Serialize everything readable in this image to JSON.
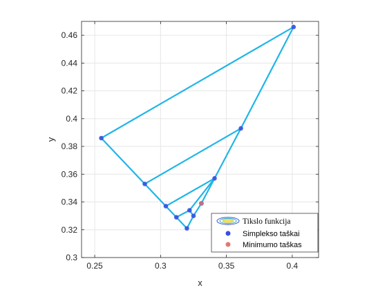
{
  "chart_data": {
    "type": "line",
    "xlabel": "x",
    "ylabel": "y",
    "xlim": [
      0.24,
      0.42
    ],
    "ylim": [
      0.3,
      0.47
    ],
    "xticks": [
      0.25,
      0.3,
      0.35,
      0.4
    ],
    "xtick_labels": [
      "0.25",
      "0.3",
      "0.35",
      "0.4"
    ],
    "yticks": [
      0.3,
      0.32,
      0.34,
      0.36,
      0.38,
      0.4,
      0.42,
      0.44,
      0.46
    ],
    "ytick_labels": [
      "0.3",
      "0.32",
      "0.34",
      "0.36",
      "0.38",
      "0.4",
      "0.42",
      "0.44",
      "0.46"
    ],
    "grid": true,
    "legend_position": "bottom-right",
    "colors": {
      "path": "#1fb5e8",
      "simplex_point": "#3a4fe0",
      "min_point": "#e07a6e",
      "contour_yellow": "#f5e663",
      "contour_blue": "#3050d0"
    },
    "series": [
      {
        "name": "Tikslo funkcija",
        "kind": "contour-legend-only"
      },
      {
        "name": "Simplekso taškai",
        "kind": "simplex-path",
        "points": [
          {
            "x": 0.401,
            "y": 0.466
          },
          {
            "x": 0.255,
            "y": 0.386
          },
          {
            "x": 0.288,
            "y": 0.353
          },
          {
            "x": 0.361,
            "y": 0.393
          },
          {
            "x": 0.304,
            "y": 0.337
          },
          {
            "x": 0.341,
            "y": 0.357
          },
          {
            "x": 0.312,
            "y": 0.329
          },
          {
            "x": 0.322,
            "y": 0.334
          },
          {
            "x": 0.32,
            "y": 0.321
          },
          {
            "x": 0.325,
            "y": 0.33
          },
          {
            "x": 0.331,
            "y": 0.339
          }
        ],
        "segments": [
          [
            0,
            1
          ],
          [
            1,
            2
          ],
          [
            2,
            3
          ],
          [
            3,
            0
          ],
          [
            2,
            4
          ],
          [
            4,
            5
          ],
          [
            5,
            3
          ],
          [
            4,
            6
          ],
          [
            6,
            7
          ],
          [
            7,
            5
          ],
          [
            6,
            8
          ],
          [
            8,
            9
          ],
          [
            9,
            7
          ],
          [
            9,
            10
          ],
          [
            10,
            5
          ]
        ]
      },
      {
        "name": "Minimumo taškas",
        "kind": "minimum",
        "points": [
          {
            "x": 0.331,
            "y": 0.339
          }
        ]
      }
    ]
  }
}
